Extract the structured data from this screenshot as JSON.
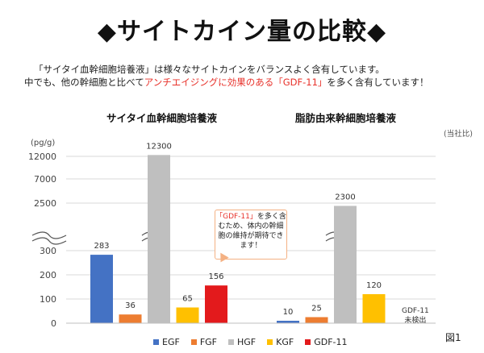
{
  "title": "◆サイトカイン量の比較◆",
  "intro": {
    "line1": "「サイタイ血幹細胞培養液」は様々なサイトカインをバランスよく含有しています。",
    "line2_pre": "中でも、他の幹細胞と比べて",
    "line2_highlight": "アンチエイジングに効果のある「GDF-11」",
    "line2_post": "を多く含有しています！"
  },
  "unit_note": "(当社比)",
  "y_unit": "(pg/g)",
  "callout": {
    "quote": "「GDF-11」",
    "text": "を多く含むため、体内の幹細胞の維持が期待できます！"
  },
  "not_detected_note": {
    "line1": "GDF-11",
    "line2": "未検出"
  },
  "figure_label": "図1",
  "colors": {
    "EGF": "#4472c4",
    "FGF": "#ed7d31",
    "HGF": "#bfbfbf",
    "KGF": "#ffc000",
    "GDF-11": "#e31a1c",
    "highlight": "#e8312a"
  },
  "chart_data": {
    "type": "bar",
    "ylabel": "(pg/g)",
    "y_ticks": [
      0,
      100,
      200,
      300,
      2500,
      7000,
      12000
    ],
    "axis_break": "between 300 and 2500",
    "categories": [
      "EGF",
      "FGF",
      "HGF",
      "KGF",
      "GDF-11"
    ],
    "groups": [
      {
        "name": "サイタイ血幹細胞培養液",
        "values": [
          283,
          36,
          12300,
          65,
          156
        ]
      },
      {
        "name": "脂肪由来幹細胞培養液",
        "values": [
          10,
          25,
          2300,
          120,
          null
        ]
      }
    ],
    "legend": [
      "EGF",
      "FGF",
      "HGF",
      "KGF",
      "GDF-11"
    ],
    "legend_position": "bottom"
  }
}
